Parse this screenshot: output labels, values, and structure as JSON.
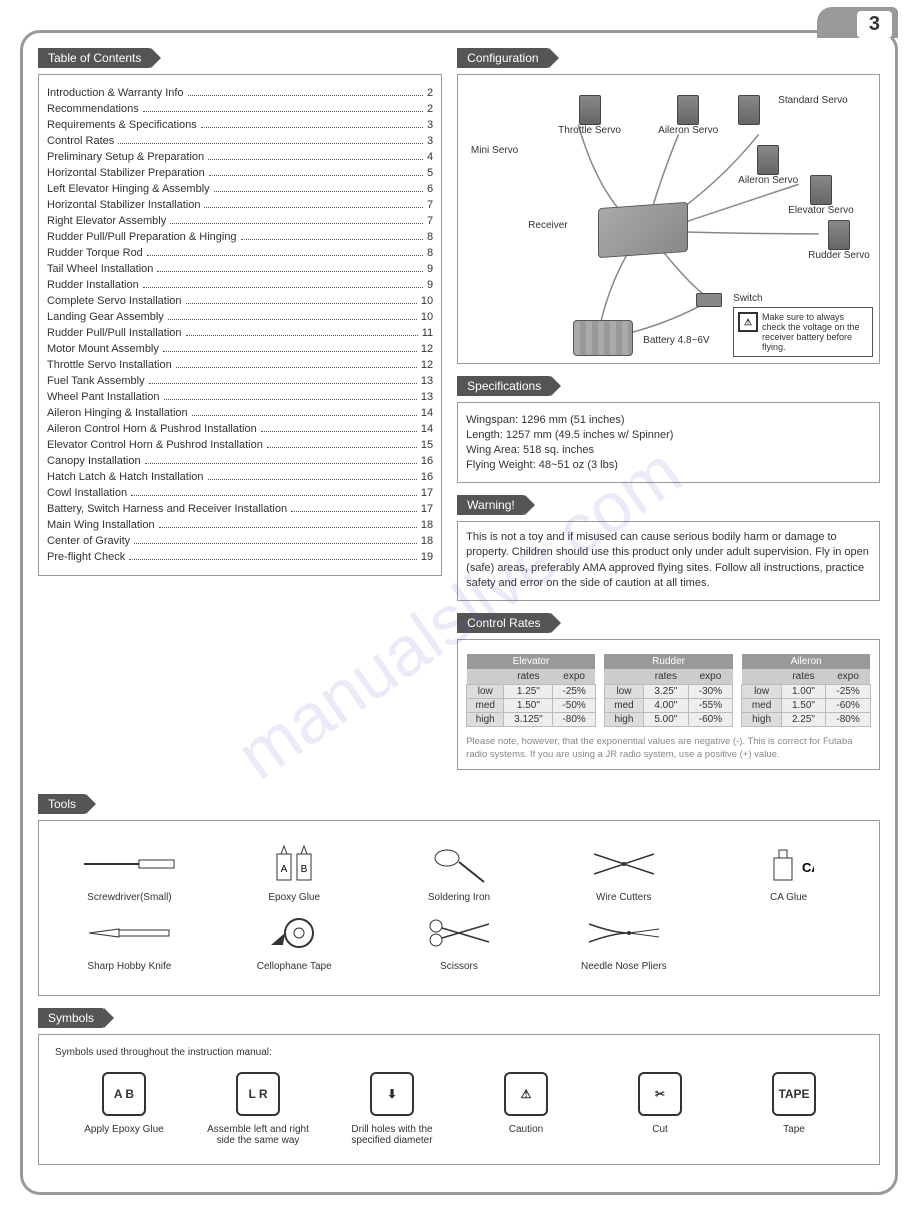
{
  "page_number": "3",
  "watermark": "manualslive.com",
  "toc": {
    "header": "Table of Contents",
    "items": [
      {
        "title": "Introduction & Warranty Info",
        "page": "2"
      },
      {
        "title": "Recommendations",
        "page": "2"
      },
      {
        "title": "Requirements & Specifications",
        "page": "3"
      },
      {
        "title": "Control Rates",
        "page": "3"
      },
      {
        "title": "Preliminary Setup & Preparation",
        "page": "4"
      },
      {
        "title": "Horizontal Stabilizer Preparation",
        "page": "5"
      },
      {
        "title": "Left Elevator Hinging & Assembly",
        "page": "6"
      },
      {
        "title": "Horizontal Stabilizer Installation",
        "page": "7"
      },
      {
        "title": "Right Elevator Assembly",
        "page": "7"
      },
      {
        "title": "Rudder Pull/Pull Preparation & Hinging",
        "page": "8"
      },
      {
        "title": "Rudder Torque Rod",
        "page": "8"
      },
      {
        "title": "Tail Wheel Installation",
        "page": "9"
      },
      {
        "title": "Rudder Installation",
        "page": "9"
      },
      {
        "title": "Complete Servo Installation",
        "page": "10"
      },
      {
        "title": "Landing Gear Assembly",
        "page": "10"
      },
      {
        "title": "Rudder Pull/Pull Installation",
        "page": "11"
      },
      {
        "title": "Motor Mount Assembly",
        "page": "12"
      },
      {
        "title": "Throttle Servo Installation",
        "page": "12"
      },
      {
        "title": "Fuel Tank Assembly",
        "page": "13"
      },
      {
        "title": "Wheel Pant Installation",
        "page": "13"
      },
      {
        "title": "Aileron Hinging & Installation",
        "page": "14"
      },
      {
        "title": "Aileron Control Horn & Pushrod Installation",
        "page": "14"
      },
      {
        "title": "Elevator Control Horn & Pushrod Installation",
        "page": "15"
      },
      {
        "title": "Canopy Installation",
        "page": "16"
      },
      {
        "title": "Hatch Latch & Hatch Installation",
        "page": "16"
      },
      {
        "title": "Cowl Installation",
        "page": "17"
      },
      {
        "title": "Battery, Switch Harness and Receiver Installation",
        "page": "17"
      },
      {
        "title": "Main Wing Installation",
        "page": "18"
      },
      {
        "title": "Center of Gravity",
        "page": "18"
      },
      {
        "title": "Pre-flight Check",
        "page": "19"
      }
    ]
  },
  "configuration": {
    "header": "Configuration",
    "labels": {
      "throttle_servo": "Throttle Servo",
      "mini_servo": "Mini Servo",
      "standard_servo": "Standard Servo",
      "aileron_servo": "Aileron Servo",
      "elevator_servo": "Elevator Servo",
      "rudder_servo": "Rudder Servo",
      "receiver": "Receiver",
      "switch": "Switch",
      "battery": "Battery 4.8~6V"
    },
    "note": "Make sure to always check the voltage on the receiver battery before flying."
  },
  "specifications": {
    "header": "Specifications",
    "lines": [
      "Wingspan: 1296 mm (51 inches)",
      "Length: 1257 mm (49.5 inches w/ Spinner)",
      "Wing Area: 518 sq. inches",
      "Flying Weight: 48~51 oz (3 lbs)"
    ]
  },
  "warning": {
    "header": "Warning!",
    "text": "This is not a toy and if misused can cause serious bodily harm or damage to property. Children should use this product only under adult supervision. Fly in open (safe) areas, preferably AMA approved flying sites. Follow all instructions, practice safety and error on the side of caution at all times."
  },
  "control_rates": {
    "header": "Control Rates",
    "col_rates": "rates",
    "col_expo": "expo",
    "row_low": "low",
    "row_med": "med",
    "row_high": "high",
    "tables": [
      {
        "name": "Elevator",
        "rows": [
          [
            "1.25\"",
            "-25%"
          ],
          [
            "1.50\"",
            "-50%"
          ],
          [
            "3.125\"",
            "-80%"
          ]
        ]
      },
      {
        "name": "Rudder",
        "rows": [
          [
            "3.25\"",
            "-30%"
          ],
          [
            "4.00\"",
            "-55%"
          ],
          [
            "5.00\"",
            "-60%"
          ]
        ]
      },
      {
        "name": "Aileron",
        "rows": [
          [
            "1.00\"",
            "-25%"
          ],
          [
            "1.50\"",
            "-60%"
          ],
          [
            "2.25\"",
            "-80%"
          ]
        ]
      }
    ],
    "note": "Please note, however, that the exponential values are negative (-). This is correct for Futaba radio systems. If you are using a JR radio system, use a positive (+) value."
  },
  "tools": {
    "header": "Tools",
    "items": [
      {
        "label": "Screwdriver(Small)",
        "icon": "screwdriver-icon"
      },
      {
        "label": "Epoxy Glue",
        "icon": "epoxy-icon"
      },
      {
        "label": "Soldering Iron",
        "icon": "soldering-icon"
      },
      {
        "label": "Wire Cutters",
        "icon": "cutters-icon"
      },
      {
        "label": "CA Glue",
        "icon": "ca-glue-icon"
      },
      {
        "label": "Sharp Hobby Knife",
        "icon": "knife-icon"
      },
      {
        "label": "Cellophane Tape",
        "icon": "tape-icon"
      },
      {
        "label": "Scissors",
        "icon": "scissors-icon"
      },
      {
        "label": "Needle Nose Pliers",
        "icon": "pliers-icon"
      }
    ]
  },
  "symbols": {
    "header": "Symbols",
    "intro": "Symbols used throughout the instruction manual:",
    "items": [
      {
        "label": "Apply Epoxy Glue",
        "glyph": "A B"
      },
      {
        "label": "Assemble left and right side the same way",
        "glyph": "L R"
      },
      {
        "label": "Drill holes with the specified diameter",
        "glyph": "⬇"
      },
      {
        "label": "Caution",
        "glyph": "⚠"
      },
      {
        "label": "Cut",
        "glyph": "✂"
      },
      {
        "label": "Tape",
        "glyph": "TAPE"
      }
    ]
  }
}
